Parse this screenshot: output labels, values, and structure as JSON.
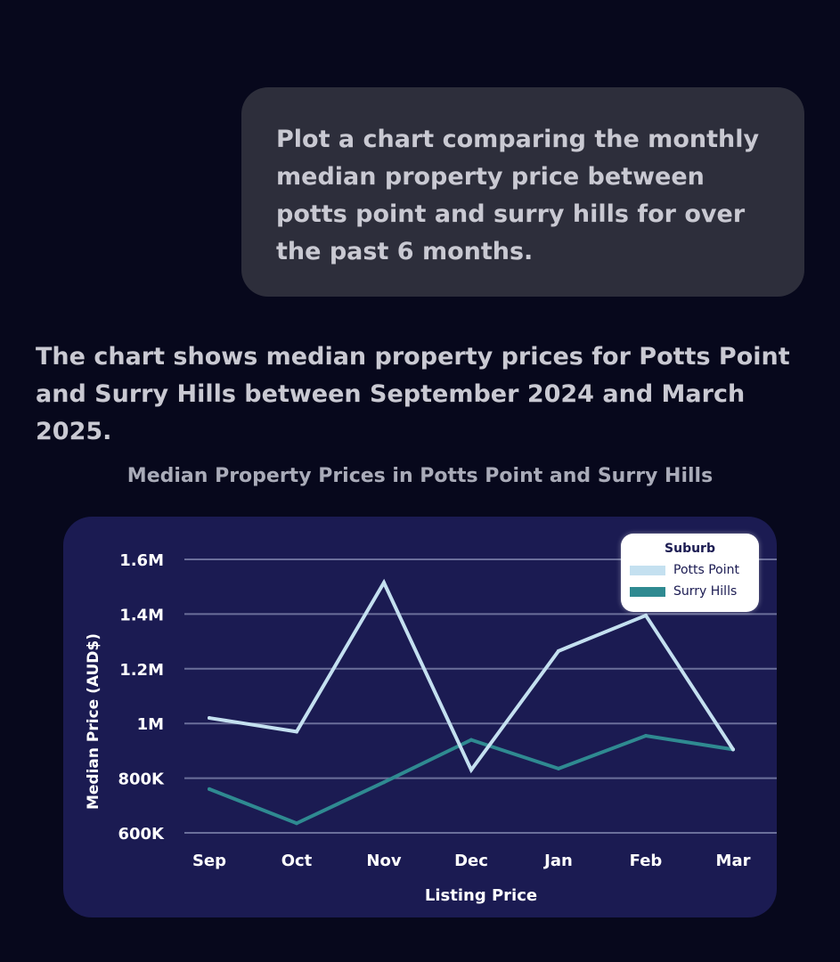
{
  "conversation": {
    "user_prompt": "Plot a chart comparing the monthly median property price between potts point and surry hills for over the past 6 months.",
    "response_text": "The chart shows median property prices for Potts Point and Surry Hills between September 2024 and March 2025."
  },
  "colors": {
    "background": "#07081c",
    "potts_point": "#c4e0f0",
    "surry_hills": "#2f8a91",
    "gridline": "#6b6f9a",
    "chart_bg": "#1b1b52"
  },
  "chart_data": {
    "type": "line",
    "title": "Median Property Prices in Potts Point and Surry Hills",
    "xlabel": "Listing Price",
    "ylabel": "Median Price (AUD$)",
    "categories": [
      "Sep",
      "Oct",
      "Nov",
      "Dec",
      "Jan",
      "Feb",
      "Mar"
    ],
    "ylim": [
      600000,
      1600000
    ],
    "yticks": [
      {
        "value": 600000,
        "label": "600K"
      },
      {
        "value": 800000,
        "label": "800K"
      },
      {
        "value": 1000000,
        "label": "1M"
      },
      {
        "value": 1200000,
        "label": "1.2M"
      },
      {
        "value": 1400000,
        "label": "1.4M"
      },
      {
        "value": 1600000,
        "label": "1.6M"
      }
    ],
    "legend": {
      "title": "Suburb",
      "position": "top-right"
    },
    "series": [
      {
        "name": "Potts Point",
        "color": "#c4e0f0",
        "values": [
          1020000,
          970000,
          1515000,
          830000,
          1265000,
          1395000,
          905000
        ]
      },
      {
        "name": "Surry Hills",
        "color": "#2f8a91",
        "values": [
          760000,
          635000,
          785000,
          940000,
          835000,
          955000,
          905000
        ]
      }
    ]
  }
}
